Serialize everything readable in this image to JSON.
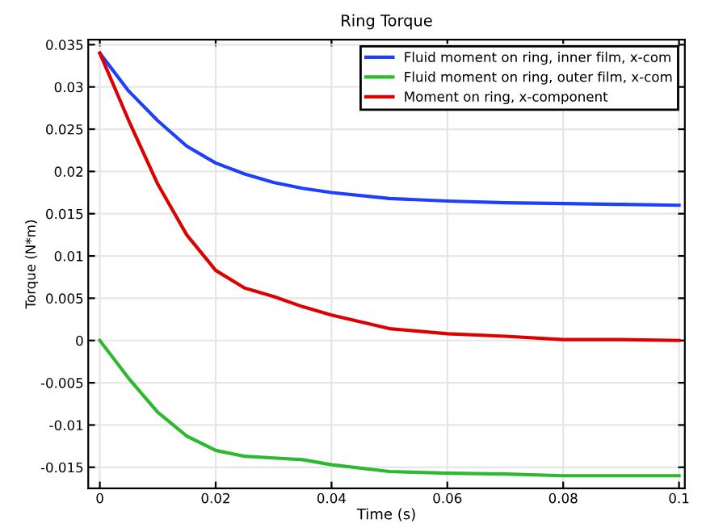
{
  "chart_data": {
    "type": "line",
    "title": "Ring Torque",
    "xlabel": "Time (s)",
    "ylabel": "Torque (N*m)",
    "xlim": [
      -0.002,
      0.101
    ],
    "ylim": [
      -0.0175,
      0.0356
    ],
    "xticks": [
      0,
      0.02,
      0.04,
      0.06,
      0.08,
      0.1
    ],
    "yticks": [
      -0.015,
      -0.01,
      -0.005,
      0,
      0.005,
      0.01,
      0.015,
      0.02,
      0.025,
      0.03,
      0.035
    ],
    "grid": true,
    "legend": "top right",
    "line_style": "solid",
    "marker": "none",
    "x": [
      0,
      0.005,
      0.01,
      0.015,
      0.02,
      0.025,
      0.03,
      0.035,
      0.04,
      0.05,
      0.06,
      0.07,
      0.08,
      0.09,
      0.1
    ],
    "series": [
      {
        "name": "Fluid moment on ring, inner film, x-com",
        "color": "#1f3fff",
        "values": [
          0.034,
          0.0295,
          0.026,
          0.023,
          0.021,
          0.0197,
          0.0187,
          0.018,
          0.0175,
          0.0168,
          0.0165,
          0.0163,
          0.0162,
          0.0161,
          0.016
        ]
      },
      {
        "name": "Fluid moment on ring, outer film, x-com",
        "color": "#2db92d",
        "values": [
          0,
          -0.0045,
          -0.0085,
          -0.0113,
          -0.013,
          -0.0137,
          -0.0139,
          -0.0141,
          -0.0147,
          -0.0155,
          -0.0157,
          -0.0158,
          -0.016,
          -0.016,
          -0.016
        ]
      },
      {
        "name": "Moment on ring, x-component",
        "color": "#dd0000",
        "values": [
          0.034,
          0.026,
          0.0185,
          0.0125,
          0.0083,
          0.0062,
          0.0052,
          0.004,
          0.003,
          0.0014,
          0.0008,
          0.0005,
          0.0001,
          0.0001,
          0.0
        ]
      }
    ]
  }
}
